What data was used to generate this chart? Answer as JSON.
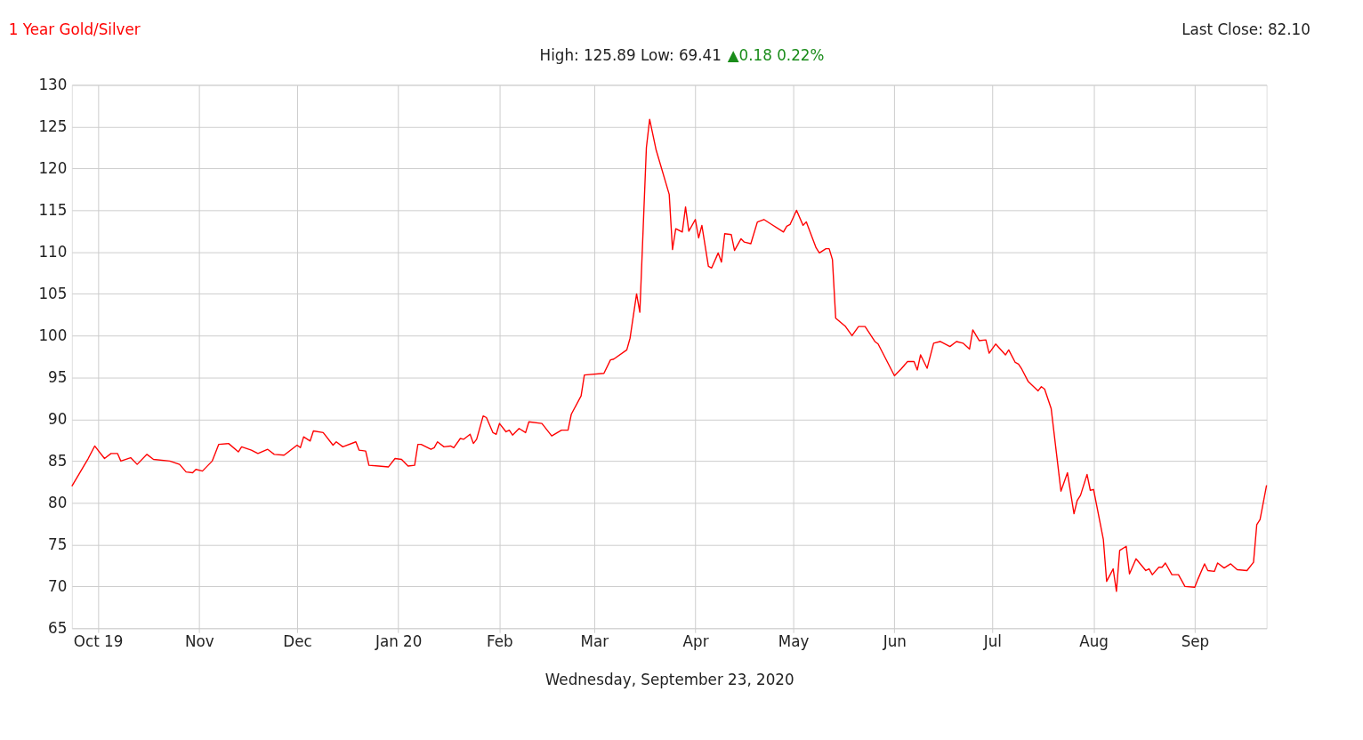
{
  "chart_data": {
    "type": "line",
    "title": "1 Year Gold/Silver",
    "subtitle": "High: 125.89 Low: 69.41",
    "annotations": [
      "Last Close: 82.10",
      "▲0.18 0.22%"
    ],
    "xlabel": "Wednesday, September 23, 2020",
    "x": [
      "2019-09-23",
      "2019-09-28",
      "2019-09-30",
      "2019-10-03",
      "2019-10-05",
      "2019-10-07",
      "2019-10-08",
      "2019-10-11",
      "2019-10-13",
      "2019-10-16",
      "2019-10-18",
      "2019-10-23",
      "2019-10-26",
      "2019-10-28",
      "2019-10-30",
      "2019-10-31",
      "2019-11-02",
      "2019-11-05",
      "2019-11-07",
      "2019-11-10",
      "2019-11-13",
      "2019-11-14",
      "2019-11-17",
      "2019-11-19",
      "2019-11-22",
      "2019-11-24",
      "2019-11-27",
      "2019-12-01",
      "2019-12-02",
      "2019-12-03",
      "2019-12-05",
      "2019-12-06",
      "2019-12-09",
      "2019-12-12",
      "2019-12-13",
      "2019-12-15",
      "2019-12-19",
      "2019-12-20",
      "2019-12-22",
      "2019-12-23",
      "2019-12-26",
      "2019-12-29",
      "2019-12-31",
      "2020-01-02",
      "2020-01-04",
      "2020-01-06",
      "2020-01-07",
      "2020-01-08",
      "2020-01-11",
      "2020-01-12",
      "2020-01-13",
      "2020-01-15",
      "2020-01-17",
      "2020-01-18",
      "2020-01-20",
      "2020-01-21",
      "2020-01-23",
      "2020-01-24",
      "2020-01-25",
      "2020-01-27",
      "2020-01-28",
      "2020-01-30",
      "2020-01-31",
      "2020-02-01",
      "2020-02-03",
      "2020-02-04",
      "2020-02-05",
      "2020-02-07",
      "2020-02-09",
      "2020-02-10",
      "2020-02-14",
      "2020-02-17",
      "2020-02-20",
      "2020-02-22",
      "2020-02-23",
      "2020-02-26",
      "2020-02-27",
      "2020-03-04",
      "2020-03-06",
      "2020-03-07",
      "2020-03-11",
      "2020-03-12",
      "2020-03-14",
      "2020-03-15",
      "2020-03-17",
      "2020-03-18",
      "2020-03-20",
      "2020-03-24",
      "2020-03-25",
      "2020-03-26",
      "2020-03-28",
      "2020-03-29",
      "2020-03-30",
      "2020-04-01",
      "2020-04-02",
      "2020-04-03",
      "2020-04-05",
      "2020-04-06",
      "2020-04-08",
      "2020-04-09",
      "2020-04-10",
      "2020-04-12",
      "2020-04-13",
      "2020-04-15",
      "2020-04-16",
      "2020-04-18",
      "2020-04-20",
      "2020-04-22",
      "2020-04-24",
      "2020-04-28",
      "2020-04-29",
      "2020-04-30",
      "2020-05-02",
      "2020-05-04",
      "2020-05-05",
      "2020-05-08",
      "2020-05-09",
      "2020-05-11",
      "2020-05-12",
      "2020-05-13",
      "2020-05-14",
      "2020-05-17",
      "2020-05-19",
      "2020-05-21",
      "2020-05-23",
      "2020-05-26",
      "2020-05-27",
      "2020-06-01",
      "2020-06-03",
      "2020-06-05",
      "2020-06-07",
      "2020-06-08",
      "2020-06-09",
      "2020-06-11",
      "2020-06-13",
      "2020-06-15",
      "2020-06-18",
      "2020-06-20",
      "2020-06-22",
      "2020-06-24",
      "2020-06-25",
      "2020-06-27",
      "2020-06-29",
      "2020-06-30",
      "2020-07-02",
      "2020-07-05",
      "2020-07-06",
      "2020-07-08",
      "2020-07-09",
      "2020-07-10",
      "2020-07-12",
      "2020-07-15",
      "2020-07-16",
      "2020-07-17",
      "2020-07-19",
      "2020-07-22",
      "2020-07-24",
      "2020-07-26",
      "2020-07-27",
      "2020-07-28",
      "2020-07-30",
      "2020-07-31",
      "2020-08-01",
      "2020-08-04",
      "2020-08-05",
      "2020-08-07",
      "2020-08-08",
      "2020-08-09",
      "2020-08-11",
      "2020-08-12",
      "2020-08-14",
      "2020-08-17",
      "2020-08-18",
      "2020-08-19",
      "2020-08-21",
      "2020-08-22",
      "2020-08-23",
      "2020-08-25",
      "2020-08-27",
      "2020-08-29",
      "2020-09-01",
      "2020-09-02",
      "2020-09-04",
      "2020-09-05",
      "2020-09-07",
      "2020-09-08",
      "2020-09-10",
      "2020-09-12",
      "2020-09-14",
      "2020-09-17",
      "2020-09-19",
      "2020-09-20",
      "2020-09-21",
      "2020-09-23"
    ],
    "series": [
      {
        "color": "#ff0000",
        "values": [
          82.0,
          85.3,
          86.8,
          85.3,
          85.9,
          85.9,
          85.0,
          85.4,
          84.6,
          85.8,
          85.2,
          85.0,
          84.6,
          83.7,
          83.6,
          84.0,
          83.8,
          85.0,
          87.0,
          87.1,
          86.1,
          86.7,
          86.3,
          85.9,
          86.4,
          85.8,
          85.7,
          86.9,
          86.6,
          87.9,
          87.4,
          88.6,
          88.4,
          86.9,
          87.3,
          86.7,
          87.3,
          86.3,
          86.2,
          84.5,
          84.4,
          84.3,
          85.3,
          85.2,
          84.4,
          84.5,
          87.0,
          87.0,
          86.4,
          86.6,
          87.3,
          86.7,
          86.8,
          86.6,
          87.7,
          87.6,
          88.2,
          87.1,
          87.6,
          90.4,
          90.2,
          88.4,
          88.2,
          89.5,
          88.5,
          88.7,
          88.1,
          88.9,
          88.4,
          89.7,
          89.5,
          88.0,
          88.7,
          88.7,
          90.6,
          92.8,
          95.3,
          95.5,
          97.1,
          97.2,
          98.3,
          99.7,
          105.0,
          102.8,
          122.5,
          125.89,
          122.2,
          116.9,
          110.3,
          112.8,
          112.4,
          115.4,
          112.5,
          113.9,
          111.7,
          113.2,
          108.3,
          108.1,
          109.9,
          108.8,
          112.2,
          112.1,
          110.2,
          111.6,
          111.2,
          111.0,
          113.6,
          113.9,
          113.4,
          112.4,
          113.1,
          113.3,
          115.0,
          113.2,
          113.6,
          110.5,
          109.9,
          110.4,
          110.4,
          109.1,
          102.1,
          101.1,
          100.0,
          101.1,
          101.1,
          99.3,
          99.0,
          95.2,
          96.0,
          96.9,
          96.9,
          95.9,
          97.7,
          96.1,
          99.1,
          99.3,
          98.7,
          99.3,
          99.1,
          98.4,
          100.7,
          99.4,
          99.5,
          97.9,
          99.0,
          97.7,
          98.3,
          96.8,
          96.6,
          96.0,
          94.5,
          93.4,
          93.9,
          93.6,
          91.3,
          81.4,
          83.6,
          78.7,
          80.3,
          80.9,
          83.4,
          81.5,
          81.6,
          75.6,
          70.6,
          72.1,
          69.41,
          74.3,
          74.8,
          71.5,
          73.3,
          71.9,
          72.1,
          71.4,
          72.3,
          72.3,
          72.8,
          71.4,
          71.4,
          70.0,
          69.9,
          70.9,
          72.7,
          71.9,
          71.8,
          72.8,
          72.2,
          72.7,
          72.0,
          71.9,
          72.9,
          77.4,
          78.0,
          82.1
        ]
      }
    ],
    "xlim": [
      "2019-09-23",
      "2020-09-23"
    ],
    "xticks": [
      {
        "value": "2019-10-01",
        "label": "Oct 19"
      },
      {
        "value": "2019-11-01",
        "label": "Nov"
      },
      {
        "value": "2019-12-01",
        "label": "Dec"
      },
      {
        "value": "2020-01-01",
        "label": "Jan 20"
      },
      {
        "value": "2020-02-01",
        "label": "Feb"
      },
      {
        "value": "2020-03-01",
        "label": "Mar"
      },
      {
        "value": "2020-04-01",
        "label": "Apr"
      },
      {
        "value": "2020-05-01",
        "label": "May"
      },
      {
        "value": "2020-06-01",
        "label": "Jun"
      },
      {
        "value": "2020-07-01",
        "label": "Jul"
      },
      {
        "value": "2020-08-01",
        "label": "Aug"
      },
      {
        "value": "2020-09-01",
        "label": "Sep"
      }
    ],
    "ylim": [
      65,
      130
    ],
    "yticks": [
      65,
      70,
      75,
      80,
      85,
      90,
      95,
      100,
      105,
      110,
      115,
      120,
      125,
      130
    ],
    "grid": true
  }
}
